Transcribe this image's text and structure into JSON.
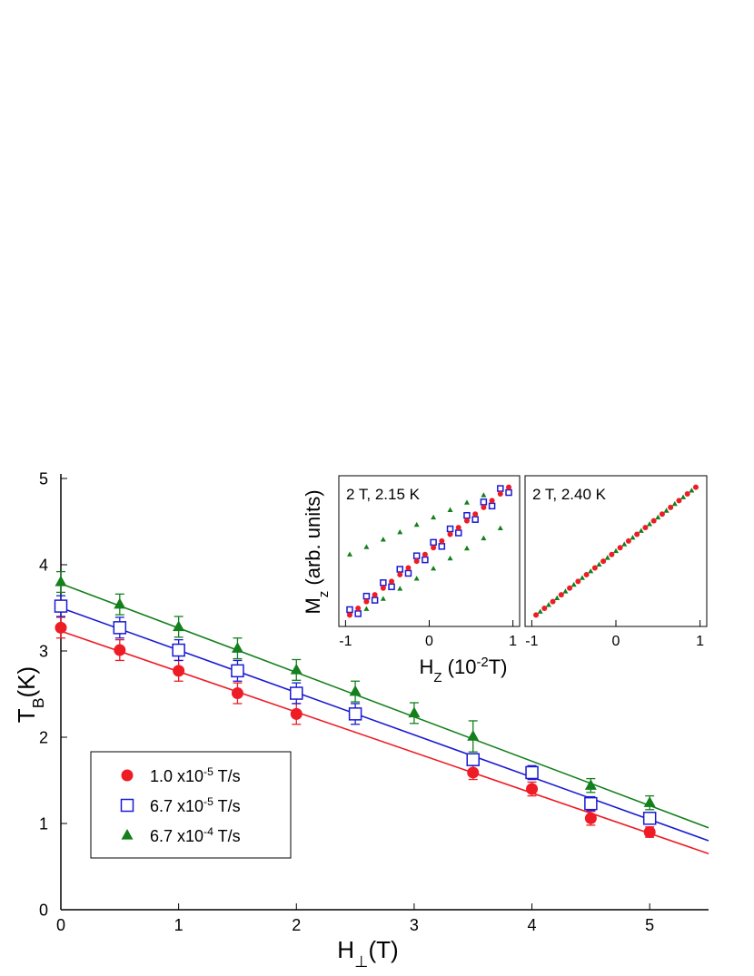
{
  "chart_data": [
    {
      "type": "scatter",
      "frame": "axes",
      "legend_loc": "lower left",
      "xlabel": [
        {
          "text": "H"
        },
        {
          "text": "⊥",
          "shift": "sub"
        },
        {
          "text": "(T)"
        }
      ],
      "ylabel": [
        {
          "text": "T"
        },
        {
          "text": "B",
          "shift": "sub"
        },
        {
          "text": "(K)"
        }
      ],
      "xlim": [
        0,
        5.5
      ],
      "ylim": [
        0,
        5
      ],
      "xticks": [
        0,
        1,
        2,
        3,
        4,
        5
      ],
      "yticks": [
        0,
        1,
        2,
        3,
        4,
        5
      ],
      "series": [
        {
          "name": [
            {
              "text": "1.0 x10"
            },
            {
              "text": "-5",
              "shift": "super"
            },
            {
              "text": " T/s"
            }
          ],
          "color": "#ee1c25",
          "marker": "circle",
          "x": [
            0,
            0.5,
            1,
            1.5,
            2,
            3.5,
            4,
            4.5,
            5
          ],
          "values": [
            3.27,
            3.01,
            2.77,
            2.51,
            2.27,
            1.59,
            1.4,
            1.06,
            0.9
          ],
          "errors": [
            0.12,
            0.12,
            0.12,
            0.12,
            0.12,
            0.08,
            0.08,
            0.08,
            0.06
          ]
        },
        {
          "name": [
            {
              "text": "6.7 x10"
            },
            {
              "text": "-5",
              "shift": "super"
            },
            {
              "text": " T/s"
            }
          ],
          "color": "#1a1ad4",
          "marker": "square-open",
          "x": [
            0,
            0.5,
            1,
            1.5,
            2,
            2.5,
            3.5,
            4,
            4.5,
            5
          ],
          "values": [
            3.52,
            3.27,
            3.01,
            2.77,
            2.51,
            2.27,
            1.74,
            1.59,
            1.23,
            1.06
          ],
          "errors": [
            0.12,
            0.12,
            0.12,
            0.12,
            0.12,
            0.12,
            0.06,
            0.08,
            0.08,
            0.06
          ]
        },
        {
          "name": [
            {
              "text": "6.7 x10"
            },
            {
              "text": "-4",
              "shift": "super"
            },
            {
              "text": " T/s"
            }
          ],
          "color": "#13801c",
          "marker": "triangle",
          "x": [
            0,
            0.5,
            1,
            1.5,
            2,
            2.5,
            3,
            3.5,
            4.5,
            5
          ],
          "values": [
            3.8,
            3.54,
            3.28,
            3.03,
            2.78,
            2.53,
            2.28,
            2.01,
            1.44,
            1.24
          ],
          "errors": [
            0.12,
            0.12,
            0.12,
            0.12,
            0.12,
            0.12,
            0.12,
            0.18,
            0.08,
            0.08
          ]
        }
      ],
      "fits": [
        {
          "color": "#ee1c25",
          "x": [
            0,
            5.5
          ],
          "values": [
            3.23,
            0.65
          ]
        },
        {
          "color": "#1a1ad4",
          "x": [
            0,
            5.5
          ],
          "values": [
            3.5,
            0.8
          ]
        },
        {
          "color": "#13801c",
          "x": [
            0,
            5.5
          ],
          "values": [
            3.78,
            0.95
          ]
        }
      ]
    },
    {
      "type": "scatter",
      "frame": "box",
      "note": "2 T, 2.15 K",
      "xlabel": [
        {
          "text": "H"
        },
        {
          "text": "Z",
          "shift": "sub"
        },
        {
          "text": " (10"
        },
        {
          "text": "-2",
          "shift": "super"
        },
        {
          "text": "T)"
        }
      ],
      "ylabel": [
        {
          "text": "M"
        },
        {
          "text": "z",
          "shift": "sub"
        },
        {
          "text": " (arb. units)"
        }
      ],
      "xlim": [
        -1.08,
        1.08
      ],
      "ylim": [
        -1.12,
        1.12
      ],
      "xticks": [
        -1,
        0,
        1
      ],
      "series": [
        {
          "color": "#13801c",
          "marker": "triangle",
          "x": [
            -0.95,
            -0.95,
            -0.75,
            -0.55,
            -0.35,
            -0.15,
            0.05,
            0.25,
            0.45,
            0.65,
            -0.75,
            -0.55,
            -0.35,
            -0.15,
            0.05,
            0.25,
            0.45,
            0.65,
            0.85,
            0.95
          ],
          "values": [
            -0.9,
            -0.05,
            0.06,
            0.17,
            0.28,
            0.39,
            0.5,
            0.61,
            0.72,
            0.83,
            -0.86,
            -0.71,
            -0.56,
            -0.41,
            -0.26,
            -0.11,
            0.04,
            0.19,
            0.34,
            0.92
          ]
        },
        {
          "color": "#1a1ad4",
          "marker": "square-open",
          "x": [
            -0.95,
            -0.75,
            -0.55,
            -0.35,
            -0.15,
            0.05,
            0.25,
            0.45,
            0.65,
            0.85,
            -0.85,
            -0.65,
            -0.45,
            -0.25,
            -0.05,
            0.15,
            0.35,
            0.55,
            0.75,
            0.95
          ],
          "values": [
            -0.87,
            -0.67,
            -0.47,
            -0.27,
            -0.07,
            0.13,
            0.33,
            0.53,
            0.73,
            0.93,
            -0.93,
            -0.73,
            -0.53,
            -0.33,
            -0.13,
            0.07,
            0.27,
            0.47,
            0.67,
            0.87
          ]
        },
        {
          "color": "#ee1c25",
          "marker": "circle",
          "x": [
            -0.95,
            -0.85,
            -0.75,
            -0.65,
            -0.55,
            -0.45,
            -0.35,
            -0.25,
            -0.15,
            -0.05,
            0.05,
            0.15,
            0.25,
            0.35,
            0.45,
            0.55,
            0.65,
            0.75,
            0.85,
            0.95
          ],
          "values": [
            -0.95,
            -0.85,
            -0.75,
            -0.65,
            -0.55,
            -0.45,
            -0.35,
            -0.25,
            -0.15,
            -0.05,
            0.05,
            0.15,
            0.25,
            0.35,
            0.45,
            0.55,
            0.65,
            0.75,
            0.85,
            0.95
          ]
        }
      ]
    },
    {
      "type": "scatter",
      "frame": "box",
      "note": "2 T, 2.40 K",
      "xlim": [
        -1.08,
        1.08
      ],
      "ylim": [
        -1.12,
        1.12
      ],
      "xticks": [
        -1,
        0,
        1
      ],
      "series": [
        {
          "color": "#13801c",
          "marker": "triangle",
          "x": [
            -0.9,
            -0.8,
            -0.7,
            -0.6,
            -0.5,
            -0.4,
            -0.3,
            -0.2,
            -0.1,
            0,
            0.1,
            0.2,
            0.3,
            0.4,
            0.5,
            0.6,
            0.7,
            0.8,
            0.9
          ],
          "values": [
            -0.9,
            -0.8,
            -0.7,
            -0.6,
            -0.5,
            -0.4,
            -0.3,
            -0.2,
            -0.1,
            0,
            0.1,
            0.2,
            0.3,
            0.4,
            0.5,
            0.6,
            0.7,
            0.8,
            0.9
          ]
        },
        {
          "color": "#ee1c25",
          "marker": "circle",
          "x": [
            -0.95,
            -0.85,
            -0.75,
            -0.65,
            -0.55,
            -0.45,
            -0.35,
            -0.25,
            -0.15,
            -0.05,
            0.05,
            0.15,
            0.25,
            0.35,
            0.45,
            0.55,
            0.65,
            0.75,
            0.85,
            0.95
          ],
          "values": [
            -0.95,
            -0.85,
            -0.75,
            -0.65,
            -0.55,
            -0.45,
            -0.35,
            -0.25,
            -0.15,
            -0.05,
            0.05,
            0.15,
            0.25,
            0.35,
            0.45,
            0.55,
            0.65,
            0.75,
            0.85,
            0.95
          ]
        }
      ]
    }
  ]
}
